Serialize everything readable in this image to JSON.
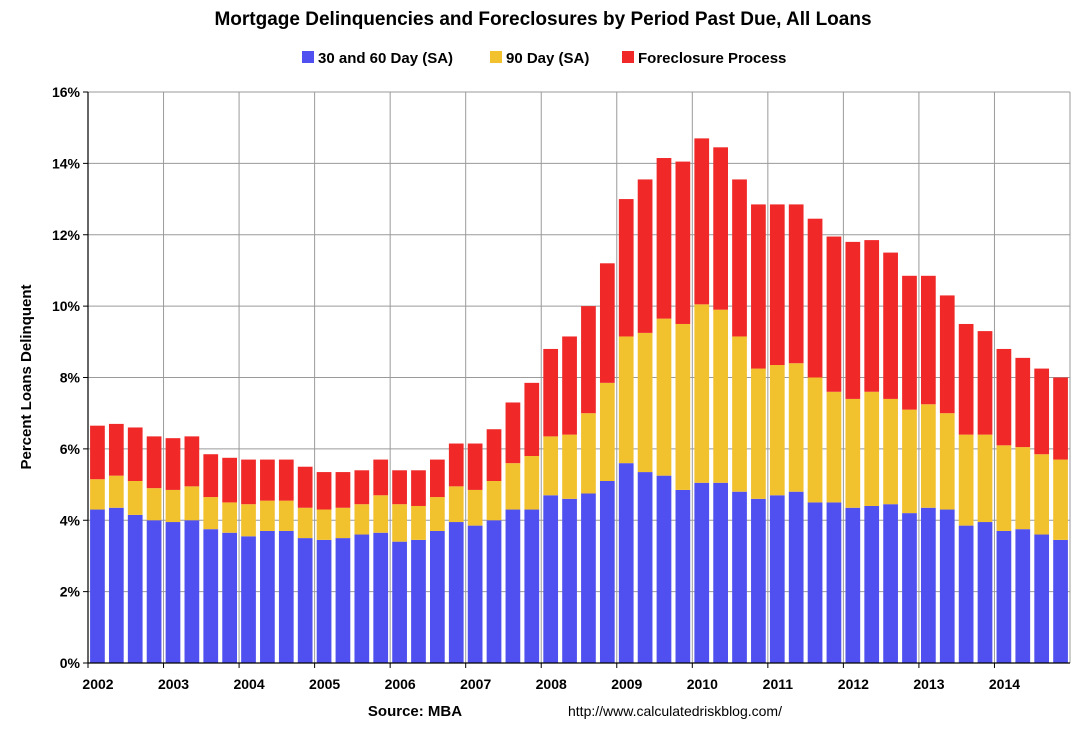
{
  "chart_data": {
    "type": "bar",
    "stacked": true,
    "title": "Mortgage Delinquencies and Foreclosures by Period Past Due, All Loans",
    "ylabel": "Percent Loans Delinquent",
    "source": "Source: MBA",
    "url": "http://www.calculatedriskblog.com/",
    "ylim": [
      0,
      16
    ],
    "y_ticks": [
      "0%",
      "2%",
      "4%",
      "6%",
      "8%",
      "10%",
      "12%",
      "14%",
      "16%"
    ],
    "grid": true,
    "legend_position": "top-center",
    "years": [
      "2002",
      "2003",
      "2004",
      "2005",
      "2006",
      "2007",
      "2008",
      "2009",
      "2010",
      "2011",
      "2012",
      "2013",
      "2014"
    ],
    "quarters_per_year": 4,
    "series": [
      {
        "name": "30 and 60 Day (SA)",
        "color": "#5050f0",
        "values": [
          4.3,
          4.35,
          4.15,
          4.0,
          3.95,
          4.0,
          3.75,
          3.65,
          3.55,
          3.7,
          3.7,
          3.5,
          3.45,
          3.5,
          3.6,
          3.65,
          3.4,
          3.45,
          3.7,
          3.95,
          3.85,
          4.0,
          4.3,
          4.3,
          4.7,
          4.6,
          4.75,
          5.1,
          5.6,
          5.35,
          5.25,
          4.85,
          5.05,
          5.05,
          4.8,
          4.6,
          4.7,
          4.8,
          4.5,
          4.5,
          4.35,
          4.4,
          4.45,
          4.2,
          4.35,
          4.3,
          3.85,
          3.95,
          3.7,
          3.75,
          3.6,
          3.45
        ]
      },
      {
        "name": "90 Day (SA)",
        "color": "#f2c12e",
        "values": [
          0.85,
          0.9,
          0.95,
          0.9,
          0.9,
          0.95,
          0.9,
          0.85,
          0.9,
          0.85,
          0.85,
          0.85,
          0.85,
          0.85,
          0.85,
          1.05,
          1.05,
          0.95,
          0.95,
          1.0,
          1.0,
          1.1,
          1.3,
          1.5,
          1.65,
          1.8,
          2.25,
          2.75,
          3.55,
          3.9,
          4.4,
          4.65,
          5.0,
          4.85,
          4.35,
          3.65,
          3.65,
          3.6,
          3.5,
          3.1,
          3.05,
          3.2,
          2.95,
          2.9,
          2.9,
          2.7,
          2.55,
          2.45,
          2.4,
          2.3,
          2.25,
          2.25
        ]
      },
      {
        "name": "Foreclosure Process",
        "color": "#f02828",
        "values": [
          1.5,
          1.45,
          1.5,
          1.45,
          1.45,
          1.4,
          1.2,
          1.25,
          1.25,
          1.15,
          1.15,
          1.15,
          1.05,
          1.0,
          0.95,
          1.0,
          0.95,
          1.0,
          1.05,
          1.2,
          1.3,
          1.45,
          1.7,
          2.05,
          2.45,
          2.75,
          3.0,
          3.35,
          3.85,
          4.3,
          4.5,
          4.55,
          4.65,
          4.55,
          4.4,
          4.6,
          4.5,
          4.45,
          4.45,
          4.35,
          4.4,
          4.25,
          4.1,
          3.75,
          3.6,
          3.3,
          3.1,
          2.9,
          2.7,
          2.5,
          2.4,
          2.3
        ]
      }
    ]
  }
}
